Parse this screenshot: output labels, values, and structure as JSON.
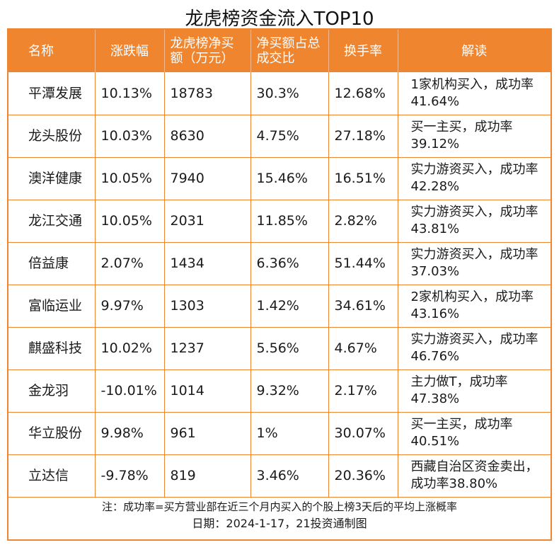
{
  "title": "龙虎榜资金流入TOP10",
  "table": {
    "headers": [
      "名称",
      "涨跌幅",
      "龙虎榜净买额（万元）",
      "净买额占总成交比",
      "换手率",
      "解读"
    ],
    "rows": [
      {
        "name": "平潭发展",
        "change": "10.13%",
        "net_buy": "18783",
        "ratio": "30.3%",
        "turnover": "12.68%",
        "note": "1家机构买入，成功率41.64%"
      },
      {
        "name": "龙头股份",
        "change": "10.03%",
        "net_buy": "8630",
        "ratio": "4.75%",
        "turnover": "27.18%",
        "note": "买一主买，成功率39.12%"
      },
      {
        "name": "澳洋健康",
        "change": "10.05%",
        "net_buy": "7940",
        "ratio": "15.46%",
        "turnover": "16.51%",
        "note": "实力游资买入，成功率42.28%"
      },
      {
        "name": "龙江交通",
        "change": "10.05%",
        "net_buy": "2031",
        "ratio": "11.85%",
        "turnover": "2.82%",
        "note": "实力游资买入，成功率43.81%"
      },
      {
        "name": "倍益康",
        "change": "2.07%",
        "net_buy": "1434",
        "ratio": "6.36%",
        "turnover": "51.44%",
        "note": "实力游资买入，成功率37.03%"
      },
      {
        "name": "富临运业",
        "change": "9.97%",
        "net_buy": "1303",
        "ratio": "1.42%",
        "turnover": "34.61%",
        "note": "2家机构买入，成功率43.16%"
      },
      {
        "name": "麒盛科技",
        "change": "10.02%",
        "net_buy": "1237",
        "ratio": "5.56%",
        "turnover": "4.67%",
        "note": "实力游资买入，成功率46.76%"
      },
      {
        "name": "金龙羽",
        "change": "-10.01%",
        "net_buy": "1014",
        "ratio": "9.32%",
        "turnover": "2.17%",
        "note": "主力做T，成功率47.38%"
      },
      {
        "name": "华立股份",
        "change": "9.98%",
        "net_buy": "961",
        "ratio": "1%",
        "turnover": "30.07%",
        "note": "买一主买，成功率40.51%"
      },
      {
        "name": "立达信",
        "change": "-9.78%",
        "net_buy": "819",
        "ratio": "3.46%",
        "turnover": "20.36%",
        "note": "西藏自治区资金卖出，成功率38.80%"
      }
    ]
  },
  "footer": {
    "note": "注：成功率=买方营业部在近三个月内买入的个股上榜3天后的平均上涨概率",
    "date": "日期：2024-1-17，21投资通制图"
  },
  "colors": {
    "accent": "#f0852f",
    "header_text": "#ffffff"
  }
}
